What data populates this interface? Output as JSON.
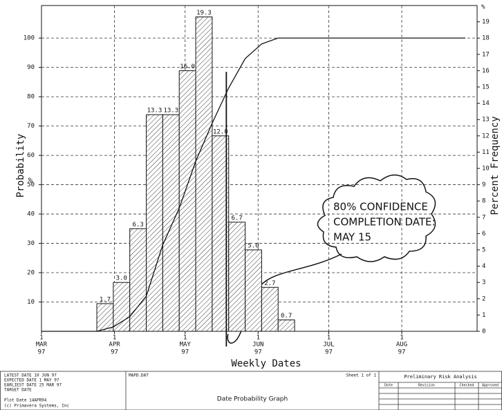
{
  "chart_data": {
    "type": "histogram",
    "ylabel": "Probability",
    "ylabel_unit": "%",
    "y2label": "Percent Frequency",
    "y2label_unit": "%",
    "xlabel": "Weekly Dates",
    "xlim": [
      0,
      185
    ],
    "xticks": [
      0,
      31,
      61,
      92,
      122,
      153
    ],
    "xtick_days": [
      "1",
      "1",
      "1",
      "1",
      "1",
      "1"
    ],
    "xtick_months": [
      "MAR",
      "APR",
      "MAY",
      "JUN",
      "JUL",
      "AUG"
    ],
    "xtick_years": [
      "97",
      "97",
      "97",
      "97",
      "97",
      "97"
    ],
    "ylim": [
      0,
      111.1
    ],
    "yticks": [
      10,
      20,
      30,
      40,
      50,
      60,
      70,
      80,
      90,
      100
    ],
    "y2lim": [
      0,
      20
    ],
    "y2ticks": [
      0,
      1,
      2,
      3,
      4,
      5,
      6,
      7,
      8,
      9,
      10,
      11,
      12,
      13,
      14,
      15,
      16,
      17,
      18,
      19
    ],
    "grid": true,
    "series": [
      {
        "type": "histogram",
        "axis": "y2",
        "bins": [
          23.5,
          30.5,
          37.5,
          44.5,
          51.5,
          58.5,
          65.5,
          72.5,
          79.5,
          86.5,
          93.5,
          100.5,
          107.5
        ],
        "values": [
          1.7,
          3.0,
          6.3,
          13.3,
          13.3,
          16.0,
          19.3,
          12.0,
          6.7,
          5.0,
          2.7,
          0.7
        ],
        "value_labels": [
          "1.7",
          "3.0",
          "6.3",
          "13.3",
          "13.3",
          "16.0",
          "19.3",
          "12.0",
          "6.7",
          "5.0",
          "2.7",
          "0.7"
        ]
      },
      {
        "type": "line",
        "axis": "y",
        "x": [
          0,
          23.5,
          30.5,
          37.5,
          44.5,
          51.5,
          58.5,
          65.5,
          72.5,
          79.5,
          86.5,
          93.5,
          100.5,
          107.5,
          180
        ],
        "values": [
          0,
          0,
          1.5,
          5,
          12,
          29.5,
          42,
          58,
          71,
          83,
          93,
          98,
          100,
          100,
          100
        ]
      }
    ],
    "confidence_x": 78.5,
    "annotation": [
      "80% CONFIDENCE",
      "COMPLETION DATE:",
      "MAY 15"
    ]
  },
  "footer": {
    "dates": [
      "LATEST DATE    10 JUN 97",
      "EXPECTED DATE   1 MAY 97",
      "EARLIEST DATE  25 MAR 97",
      "TARGET  DATE"
    ],
    "plot_date": "Plot Date   14APR94",
    "copyright": "(c) Primavera Systems, Inc",
    "file": "MAPD.DAT",
    "title": "Date Probability Graph",
    "sheet": "Sheet 1 of 1",
    "table_title": "Preliminary Risk Analysis",
    "columns": [
      "Date",
      "Revision",
      "Checked",
      "Approved"
    ]
  }
}
